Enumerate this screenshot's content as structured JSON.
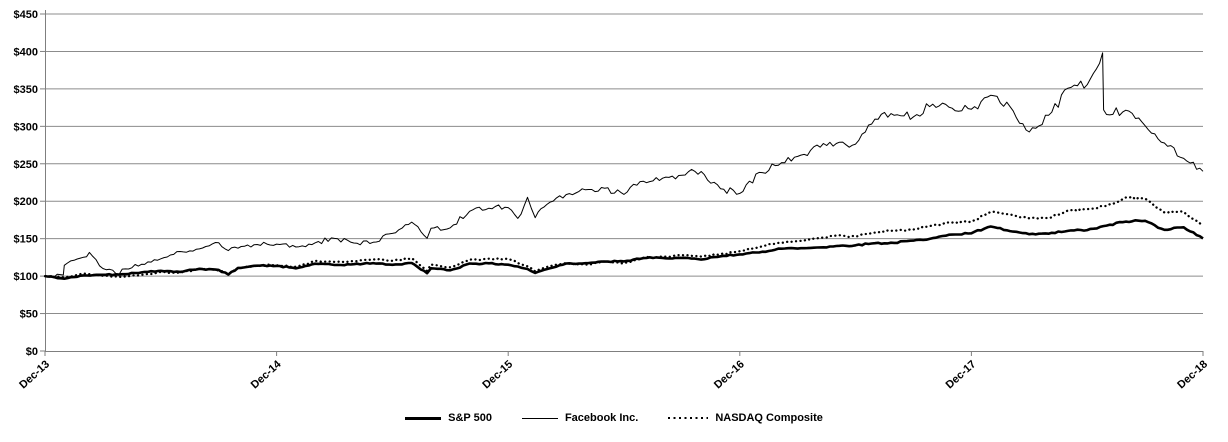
{
  "chart_data": {
    "type": "line",
    "title": "",
    "x_axis": {
      "tick_labels": [
        "Dec-13",
        "Dec-14",
        "Dec-15",
        "Dec-16",
        "Dec-17",
        "Dec-18"
      ],
      "unit": "months-from-Dec-13",
      "range_months": [
        0,
        60
      ]
    },
    "y_axis": {
      "tick_labels": [
        "$0",
        "$50",
        "$100",
        "$150",
        "$200",
        "$250",
        "$300",
        "$350",
        "$400",
        "$450"
      ],
      "min": 0,
      "max": 450,
      "step": 50
    },
    "grid": true,
    "legend_position": "bottom",
    "colors": {
      "line": "#000000",
      "grid": "#8c8c8c",
      "axis": "#7f7f7f",
      "text": "#000000",
      "background": "#ffffff"
    },
    "series": [
      {
        "name": "S&P 500",
        "style": "solid-thick",
        "stroke_width": 2.6,
        "jitter": 0.9,
        "x_months": [
          0,
          1,
          2,
          3,
          4,
          5,
          6,
          7,
          8,
          9,
          9.5,
          10,
          11,
          12,
          13,
          14,
          15,
          16,
          17,
          18,
          19,
          19.8,
          20,
          21,
          22,
          23,
          24,
          25,
          25.4,
          26,
          27,
          28,
          29,
          30,
          31,
          32,
          33,
          34,
          35,
          36,
          37,
          38,
          39,
          40,
          41,
          42,
          43,
          44,
          45,
          46,
          47,
          48,
          49,
          50,
          51,
          52,
          53,
          54,
          55,
          56,
          57,
          58,
          59,
          60
        ],
        "values": [
          100,
          96.5,
          100.9,
          101.8,
          102.5,
          104.9,
          107.1,
          105.6,
          109.8,
          108.3,
          102.0,
          110.9,
          113.9,
          113.7,
          110.3,
          116.6,
          114.8,
          115.9,
          117.4,
          115.1,
          117.5,
          103.9,
          110.4,
          107.7,
          116.8,
          117.1,
          115.3,
          109.5,
          104.3,
          109.4,
          116.8,
          117.3,
          119.4,
          119.7,
          124.1,
          124.3,
          124.3,
          122.0,
          126.5,
          129.0,
          131.5,
          136.7,
          136.8,
          138.2,
          140.2,
          141.1,
          144.0,
          144.4,
          147.4,
          150.8,
          155.4,
          157.2,
          166.2,
          160.1,
          156.0,
          156.6,
          160.4,
          161.4,
          167.4,
          172.8,
          173.8,
          161.9,
          165.2,
          150.3
        ]
      },
      {
        "name": "Facebook Inc.",
        "style": "solid-thin",
        "stroke_width": 1,
        "jitter": 2.4,
        "x_months": [
          0,
          0.95,
          1,
          2,
          2.3,
          3,
          3.85,
          4,
          5,
          6,
          7,
          8,
          9,
          9.5,
          10,
          11,
          12,
          13,
          14,
          15,
          16,
          17,
          18,
          19,
          19.8,
          20,
          21,
          22,
          23,
          24,
          24.5,
          25,
          25.4,
          26,
          27,
          28,
          29,
          30,
          31,
          32,
          33,
          34,
          35,
          36,
          37,
          38,
          39,
          40,
          41,
          42,
          43,
          44,
          45,
          46,
          47,
          48,
          49,
          50,
          51,
          52,
          53,
          54,
          54.8,
          54.85,
          55,
          56,
          57,
          58,
          59,
          60
        ],
        "values": [
          100,
          101.5,
          114.5,
          125.3,
          131.7,
          110.2,
          102.7,
          109.4,
          115.8,
          123.1,
          132.9,
          136.4,
          144.6,
          134.0,
          137.3,
          142.2,
          142.8,
          138.9,
          144.5,
          150.4,
          144.2,
          145.1,
          157.0,
          172.1,
          150.5,
          163.9,
          164.5,
          186.6,
          190.7,
          191.5,
          177.0,
          205.3,
          178.0,
          195.6,
          208.8,
          215.2,
          217.4,
          209.1,
          226.8,
          230.8,
          234.7,
          239.7,
          216.7,
          210.5,
          238.5,
          248.0,
          259.9,
          274.9,
          277.1,
          276.3,
          309.7,
          314.7,
          312.7,
          329.5,
          324.2,
          322.9,
          341.4,
          326.3,
          292.4,
          314.7,
          350.9,
          355.6,
          398.0,
          322.0,
          315.8,
          321.6,
          300.9,
          277.7,
          257.2,
          239.9
        ]
      },
      {
        "name": "NASDAQ Composite",
        "style": "dotted",
        "stroke_width": 2.3,
        "jitter": 1.0,
        "x_months": [
          0,
          1,
          2,
          3,
          4,
          5,
          6,
          7,
          8,
          9,
          9.5,
          10,
          11,
          12,
          13,
          14,
          15,
          16,
          17,
          18,
          19,
          19.8,
          20,
          21,
          22,
          23,
          24,
          25,
          25.4,
          26,
          27,
          28,
          29,
          30,
          31,
          32,
          33,
          34,
          35,
          36,
          37,
          38,
          39,
          40,
          41,
          42,
          43,
          44,
          45,
          46,
          47,
          48,
          49,
          50,
          51,
          52,
          53,
          54,
          55,
          56,
          57,
          58,
          59,
          60
        ],
        "values": [
          100,
          98.3,
          103.3,
          100.6,
          98.6,
          101.7,
          105.5,
          104.6,
          109.7,
          107.6,
          102.5,
          110.7,
          114.0,
          114.6,
          112.4,
          120.4,
          119.0,
          119.9,
          122.5,
          120.5,
          123.9,
          107.0,
          115.5,
          111.7,
          121.8,
          123.2,
          122.8,
          113.1,
          106.3,
          112.3,
          117.5,
          115.2,
          119.5,
          117.0,
          124.5,
          125.8,
          128.2,
          126.0,
          129.3,
          133.2,
          139.0,
          144.3,
          146.5,
          150.3,
          154.2,
          152.8,
          158.1,
          161.2,
          162.2,
          167.9,
          171.4,
          172.7,
          185.6,
          182.3,
          177.1,
          177.3,
          187.6,
          189.4,
          193.7,
          205.0,
          203.6,
          185.0,
          185.7,
          167.7
        ]
      }
    ]
  }
}
